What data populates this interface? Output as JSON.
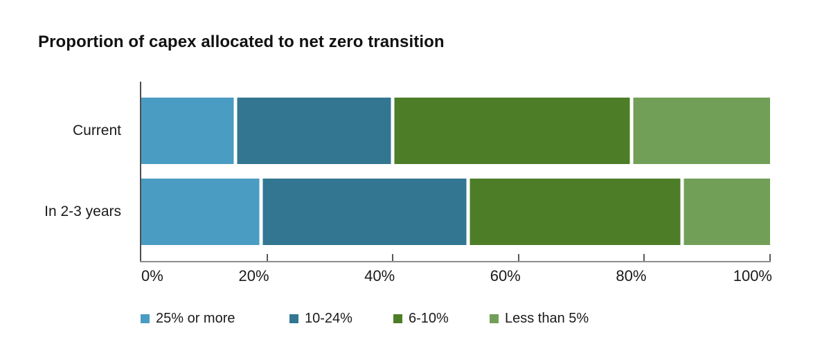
{
  "title": "Proportion of capex allocated to net zero transition",
  "chart_data": {
    "type": "bar",
    "orientation": "horizontal",
    "stacked": true,
    "title": "Proportion of capex allocated to net zero transition",
    "categories": [
      "Current",
      "In 2-3 years"
    ],
    "series": [
      {
        "name": "25% or more",
        "color": "#4a9cc3",
        "values": [
          15,
          19
        ]
      },
      {
        "name": "10-24%",
        "color": "#327691",
        "values": [
          25,
          33
        ]
      },
      {
        "name": "6-10%",
        "color": "#4d7e27",
        "values": [
          38,
          34
        ]
      },
      {
        "name": "Less than 5%",
        "color": "#719f58",
        "values": [
          22,
          14
        ]
      }
    ],
    "xlabel": "",
    "ylabel": "",
    "xlim": [
      0,
      100
    ],
    "x_ticks": [
      "0%",
      "20%",
      "40%",
      "60%",
      "80%",
      "100%"
    ],
    "x_tick_values": [
      0,
      20,
      40,
      60,
      80,
      100
    ],
    "grid": false,
    "legend_position": "bottom",
    "unit": "%"
  }
}
